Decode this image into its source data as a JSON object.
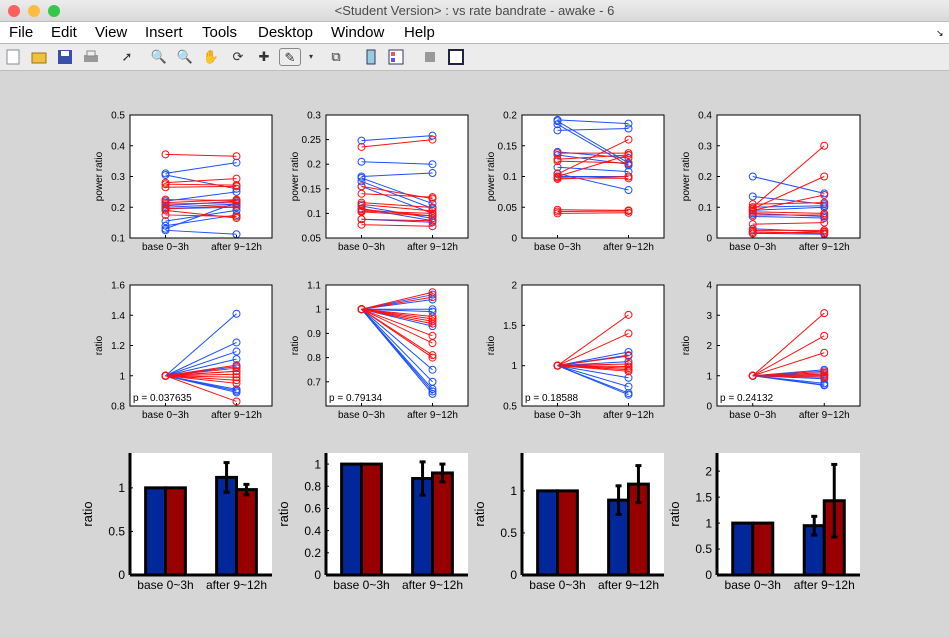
{
  "window": {
    "title": "<Student Version> : vs rate bandrate - awake - 6"
  },
  "menu": [
    "File",
    "Edit",
    "View",
    "Insert",
    "Tools",
    "Desktop",
    "Window",
    "Help"
  ],
  "toolbar": [
    "new-figure",
    "open-file",
    "save",
    "print",
    "edit-plot-arrow",
    "zoom-in",
    "zoom-out",
    "pan-hand",
    "rotate-3d",
    "data-cursor",
    "brush",
    "brush-dropdown",
    "link-plot",
    "insert-colorbar",
    "insert-legend",
    "hide-plot-tools",
    "show-plot-tools"
  ],
  "colors": {
    "blue_line": "#1a50ff",
    "red_line": "#ff1010",
    "blue_bar": "#00289a",
    "red_bar": "#980000"
  },
  "chart_data": [
    {
      "type": "line",
      "ylabel": "power ratio",
      "categories": [
        "base 0~3h",
        "after 9~12h"
      ],
      "ylim": [
        0.1,
        0.5
      ],
      "yticks": [
        "0.1",
        "0.2",
        "0.3",
        "0.4",
        "0.5"
      ],
      "series": [
        {
          "color": "blue",
          "pairs": [
            [
              0.31,
              0.345
            ],
            [
              0.305,
              0.26
            ],
            [
              0.22,
              0.25
            ],
            [
              0.205,
              0.22
            ],
            [
              0.2,
              0.21
            ],
            [
              0.195,
              0.2
            ],
            [
              0.155,
              0.19
            ],
            [
              0.14,
              0.175
            ],
            [
              0.13,
              0.215
            ],
            [
              0.125,
              0.112
            ]
          ]
        },
        {
          "color": "red",
          "pairs": [
            [
              0.372,
              0.366
            ],
            [
              0.28,
              0.293
            ],
            [
              0.275,
              0.272
            ],
            [
              0.265,
              0.268
            ],
            [
              0.225,
              0.222
            ],
            [
              0.215,
              0.225
            ],
            [
              0.21,
              0.215
            ],
            [
              0.195,
              0.205
            ],
            [
              0.175,
              0.17
            ],
            [
              0.19,
              0.165
            ]
          ]
        }
      ]
    },
    {
      "type": "line",
      "ylabel": "power ratio",
      "categories": [
        "base 0~3h",
        "after 9~12h"
      ],
      "ylim": [
        0.05,
        0.3
      ],
      "yticks": [
        "0.05",
        "0.1",
        "0.15",
        "0.2",
        "0.25",
        "0.3"
      ],
      "series": [
        {
          "color": "blue",
          "pairs": [
            [
              0.248,
              0.258
            ],
            [
              0.205,
              0.2
            ],
            [
              0.175,
              0.182
            ],
            [
              0.172,
              0.12
            ],
            [
              0.165,
              0.11
            ],
            [
              0.155,
              0.1
            ],
            [
              0.115,
              0.09
            ],
            [
              0.11,
              0.085
            ],
            [
              0.088,
              0.082
            ]
          ]
        },
        {
          "color": "red",
          "pairs": [
            [
              0.235,
              0.25
            ],
            [
              0.155,
              0.13
            ],
            [
              0.14,
              0.133
            ],
            [
              0.122,
              0.112
            ],
            [
              0.118,
              0.105
            ],
            [
              0.108,
              0.095
            ],
            [
              0.105,
              0.1
            ],
            [
              0.103,
              0.095
            ],
            [
              0.088,
              0.085
            ],
            [
              0.077,
              0.074
            ]
          ]
        }
      ]
    },
    {
      "type": "line",
      "ylabel": "power ratio",
      "categories": [
        "base 0~3h",
        "after 9~12h"
      ],
      "ylim": [
        0,
        0.2
      ],
      "yticks": [
        "0",
        "0.05",
        "0.1",
        "0.15",
        "0.2"
      ],
      "series": [
        {
          "color": "blue",
          "pairs": [
            [
              0.192,
              0.186
            ],
            [
              0.19,
              0.122
            ],
            [
              0.185,
              0.118
            ],
            [
              0.175,
              0.178
            ],
            [
              0.14,
              0.13
            ],
            [
              0.135,
              0.12
            ],
            [
              0.115,
              0.108
            ],
            [
              0.105,
              0.078
            ],
            [
              0.1,
              0.1
            ]
          ]
        },
        {
          "color": "red",
          "pairs": [
            [
              0.138,
              0.138
            ],
            [
              0.128,
              0.135
            ],
            [
              0.125,
              0.122
            ],
            [
              0.104,
              0.16
            ],
            [
              0.1,
              0.135
            ],
            [
              0.098,
              0.097
            ],
            [
              0.096,
              0.1
            ],
            [
              0.046,
              0.045
            ],
            [
              0.043,
              0.044
            ],
            [
              0.04,
              0.041
            ]
          ]
        }
      ]
    },
    {
      "type": "line",
      "ylabel": "power ratio",
      "categories": [
        "base 0~3h",
        "after 9~12h"
      ],
      "ylim": [
        0,
        0.4
      ],
      "yticks": [
        "0",
        "0.1",
        "0.2",
        "0.3",
        "0.4"
      ],
      "series": [
        {
          "color": "blue",
          "pairs": [
            [
              0.2,
              0.145
            ],
            [
              0.135,
              0.11
            ],
            [
              0.1,
              0.105
            ],
            [
              0.09,
              0.1
            ],
            [
              0.08,
              0.07
            ],
            [
              0.07,
              0.065
            ],
            [
              0.03,
              0.02
            ],
            [
              0.015,
              0.012
            ]
          ]
        },
        {
          "color": "red",
          "pairs": [
            [
              0.1,
              0.3
            ],
            [
              0.095,
              0.2
            ],
            [
              0.09,
              0.14
            ],
            [
              0.11,
              0.115
            ],
            [
              0.085,
              0.08
            ],
            [
              0.075,
              0.075
            ],
            [
              0.045,
              0.05
            ],
            [
              0.025,
              0.025
            ],
            [
              0.02,
              0.015
            ],
            [
              0.015,
              0.02
            ]
          ]
        }
      ]
    },
    {
      "type": "line",
      "ylabel": "ratio",
      "annotation": "p = 0.037635",
      "categories": [
        "base 0~3h",
        "after 9~12h"
      ],
      "ylim": [
        0.8,
        1.6
      ],
      "yticks": [
        "0.8",
        "1",
        "1.2",
        "1.4",
        "1.6"
      ],
      "series": [
        {
          "color": "blue",
          "pairs": [
            [
              1,
              1.41
            ],
            [
              1,
              1.22
            ],
            [
              1,
              1.16
            ],
            [
              1,
              1.11
            ],
            [
              1,
              1.06
            ],
            [
              1,
              1.03
            ],
            [
              1,
              0.91
            ],
            [
              1,
              0.9
            ],
            [
              1,
              0.89
            ]
          ]
        },
        {
          "color": "red",
          "pairs": [
            [
              1,
              1.07
            ],
            [
              1,
              1.05
            ],
            [
              1,
              1.03
            ],
            [
              1,
              1.01
            ],
            [
              1,
              0.99
            ],
            [
              1,
              0.97
            ],
            [
              1,
              0.95
            ],
            [
              1,
              0.83
            ]
          ]
        }
      ]
    },
    {
      "type": "line",
      "ylabel": "ratio",
      "annotation": "p = 0.79134",
      "categories": [
        "base 0~3h",
        "after 9~12h"
      ],
      "ylim": [
        0.6,
        1.1
      ],
      "yticks": [
        "0.7",
        "0.8",
        "0.9",
        "1",
        "1.1"
      ],
      "series": [
        {
          "color": "blue",
          "pairs": [
            [
              1,
              1.06
            ],
            [
              1,
              1.04
            ],
            [
              1,
              1.0
            ],
            [
              1,
              0.99
            ],
            [
              1,
              0.93
            ],
            [
              1,
              0.75
            ],
            [
              1,
              0.7
            ],
            [
              1,
              0.67
            ],
            [
              1,
              0.66
            ],
            [
              1,
              0.65
            ]
          ]
        },
        {
          "color": "red",
          "pairs": [
            [
              1,
              1.07
            ],
            [
              1,
              1.05
            ],
            [
              1,
              0.97
            ],
            [
              1,
              0.96
            ],
            [
              1,
              0.95
            ],
            [
              1,
              0.94
            ],
            [
              1,
              0.89
            ],
            [
              1,
              0.86
            ],
            [
              1,
              0.81
            ],
            [
              1,
              0.8
            ]
          ]
        }
      ]
    },
    {
      "type": "line",
      "ylabel": "ratio",
      "annotation": "p = 0.18588",
      "categories": [
        "base 0~3h",
        "after 9~12h"
      ],
      "ylim": [
        0.5,
        2
      ],
      "yticks": [
        "0.5",
        "1",
        "1.5",
        "2"
      ],
      "series": [
        {
          "color": "blue",
          "pairs": [
            [
              1,
              1.17
            ],
            [
              1,
              1.13
            ],
            [
              1,
              1.05
            ],
            [
              1,
              0.85
            ],
            [
              1,
              0.74
            ],
            [
              1,
              0.66
            ],
            [
              1,
              0.64
            ]
          ]
        },
        {
          "color": "red",
          "pairs": [
            [
              1,
              1.63
            ],
            [
              1,
              1.4
            ],
            [
              1,
              1.12
            ],
            [
              1,
              1.02
            ],
            [
              1,
              0.99
            ],
            [
              1,
              0.97
            ],
            [
              1,
              0.95
            ],
            [
              1,
              0.93
            ]
          ]
        }
      ]
    },
    {
      "type": "line",
      "ylabel": "ratio",
      "annotation": "p = 0.24132",
      "categories": [
        "base 0~3h",
        "after 9~12h"
      ],
      "ylim": [
        0,
        4
      ],
      "yticks": [
        "0",
        "1",
        "2",
        "3",
        "4"
      ],
      "series": [
        {
          "color": "blue",
          "pairs": [
            [
              1,
              1.2
            ],
            [
              1,
              1.1
            ],
            [
              1,
              1.0
            ],
            [
              1,
              0.9
            ],
            [
              1,
              0.75
            ],
            [
              1,
              0.7
            ],
            [
              1,
              0.68
            ]
          ]
        },
        {
          "color": "red",
          "pairs": [
            [
              1,
              3.07
            ],
            [
              1,
              2.32
            ],
            [
              1,
              1.76
            ],
            [
              1,
              1.15
            ],
            [
              1,
              1.05
            ],
            [
              1,
              1.0
            ],
            [
              1,
              0.95
            ]
          ]
        }
      ]
    },
    {
      "type": "bar",
      "ylabel": "ratio",
      "categories": [
        "base 0~3h",
        "after 9~12h"
      ],
      "ylim": [
        0,
        1.4
      ],
      "yticks": [
        "0",
        "0.5",
        "1"
      ],
      "series": [
        {
          "color": "blue",
          "values": [
            1,
            1.12
          ],
          "errors": [
            0,
            0.17
          ]
        },
        {
          "color": "red",
          "values": [
            1,
            0.98
          ],
          "errors": [
            0,
            0.06
          ]
        }
      ]
    },
    {
      "type": "bar",
      "ylabel": "ratio",
      "categories": [
        "base 0~3h",
        "after 9~12h"
      ],
      "ylim": [
        0,
        1.1
      ],
      "yticks": [
        "0",
        "0.2",
        "0.4",
        "0.6",
        "0.8",
        "1"
      ],
      "series": [
        {
          "color": "blue",
          "values": [
            1,
            0.87
          ],
          "errors": [
            0,
            0.15
          ]
        },
        {
          "color": "red",
          "values": [
            1,
            0.92
          ],
          "errors": [
            0,
            0.08
          ]
        }
      ]
    },
    {
      "type": "bar",
      "ylabel": "ratio",
      "categories": [
        "base 0~3h",
        "after 9~12h"
      ],
      "ylim": [
        0,
        1.45
      ],
      "yticks": [
        "0",
        "0.5",
        "1"
      ],
      "series": [
        {
          "color": "blue",
          "values": [
            1,
            0.89
          ],
          "errors": [
            0,
            0.17
          ]
        },
        {
          "color": "red",
          "values": [
            1,
            1.08
          ],
          "errors": [
            0,
            0.22
          ]
        }
      ]
    },
    {
      "type": "bar",
      "ylabel": "ratio",
      "categories": [
        "base 0~3h",
        "after 9~12h"
      ],
      "ylim": [
        0,
        2.35
      ],
      "yticks": [
        "0",
        "0.5",
        "1",
        "1.5",
        "2"
      ],
      "series": [
        {
          "color": "blue",
          "values": [
            1,
            0.95
          ],
          "errors": [
            0,
            0.18
          ]
        },
        {
          "color": "red",
          "values": [
            1,
            1.43
          ],
          "errors": [
            0,
            0.7
          ]
        }
      ]
    }
  ]
}
